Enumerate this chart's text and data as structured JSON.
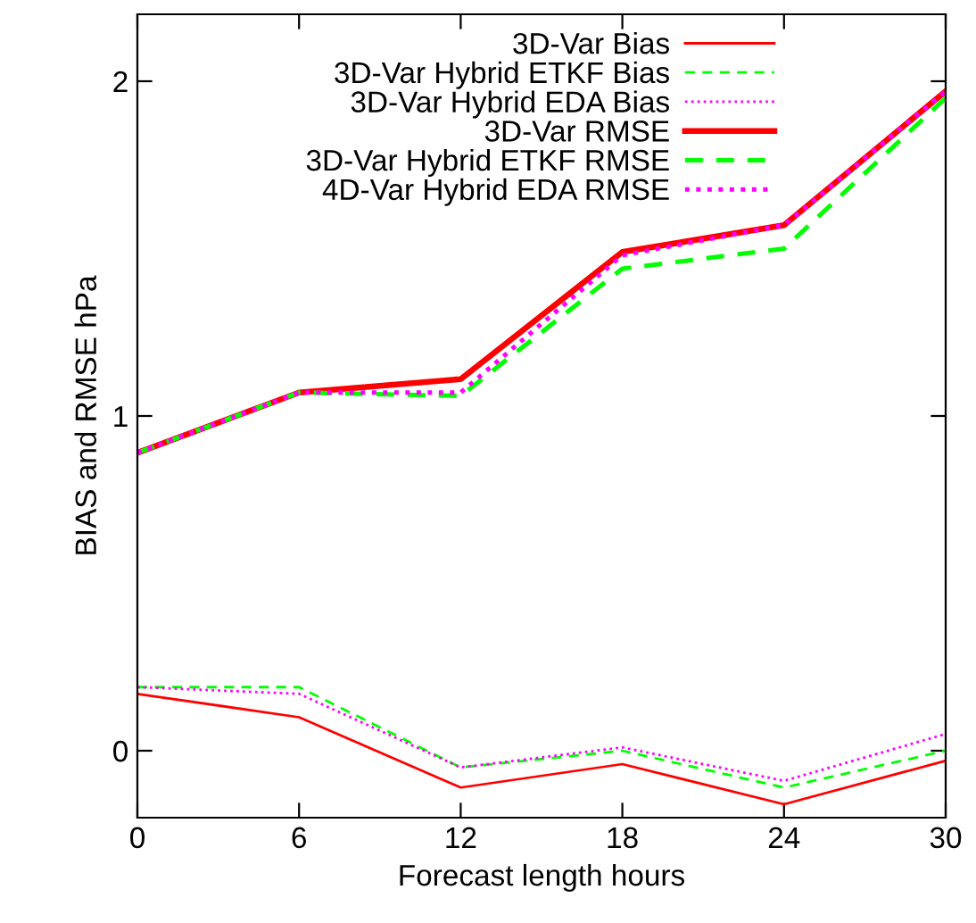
{
  "chart_data": {
    "type": "line",
    "xlabel": "Forecast length hours",
    "ylabel": "BIAS and RMSE hPa",
    "x": [
      0,
      6,
      12,
      18,
      24,
      30
    ],
    "series": [
      {
        "name": "3D-Var Bias",
        "color": "#ff0000",
        "line_style": "solid",
        "values": [
          0.17,
          0.1,
          -0.11,
          -0.04,
          -0.16,
          -0.03
        ]
      },
      {
        "name": "3D-Var Hybrid ETKF Bias",
        "color": "#00ff00",
        "line_style": "dashed",
        "values": [
          0.19,
          0.19,
          -0.05,
          0.0,
          -0.11,
          0.0
        ]
      },
      {
        "name": "3D-Var Hybrid EDA Bias",
        "color": "#ff00ff",
        "line_style": "dotted",
        "values": [
          0.19,
          0.17,
          -0.05,
          0.01,
          -0.09,
          0.05
        ]
      },
      {
        "name": "3D-Var RMSE",
        "color": "#ff0000",
        "line_style": "solid",
        "values": [
          0.89,
          1.07,
          1.11,
          1.49,
          1.57,
          1.97
        ]
      },
      {
        "name": "3D-Var Hybrid ETKF RMSE",
        "color": "#00ff00",
        "line_style": "dashed",
        "values": [
          0.89,
          1.07,
          1.06,
          1.44,
          1.5,
          1.95
        ]
      },
      {
        "name": "4D-Var Hybrid EDA RMSE",
        "color": "#ff00ff",
        "line_style": "dotted",
        "values": [
          0.89,
          1.07,
          1.07,
          1.48,
          1.57,
          1.97
        ]
      }
    ],
    "xlim": [
      0,
      30
    ],
    "xticks": [
      0,
      6,
      12,
      18,
      24,
      30
    ],
    "ylim": [
      -0.2,
      2.2
    ],
    "yticks": [
      0,
      1,
      2
    ],
    "grid": false,
    "legend": "top right",
    "marker": "none"
  }
}
